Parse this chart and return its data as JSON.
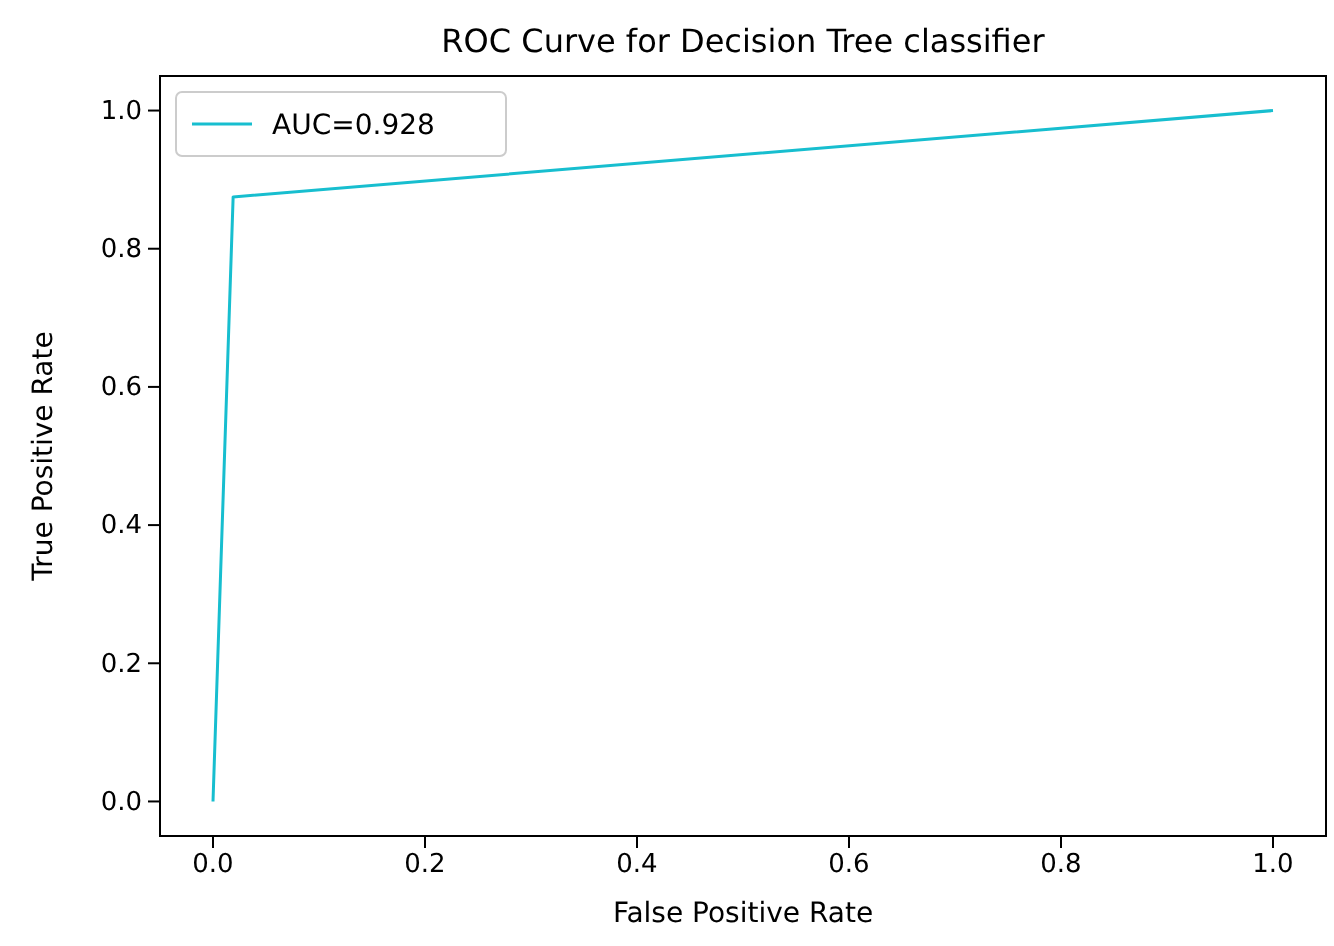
{
  "chart_data": {
    "type": "line",
    "title": "ROC Curve for Decision Tree classifier",
    "xlabel": "False Positive Rate",
    "ylabel": "True Positive Rate",
    "x": [
      0,
      0.019,
      1
    ],
    "series": [
      {
        "name": "AUC=0.928",
        "color": "#17becf",
        "values": [
          0,
          0.875,
          1
        ]
      }
    ],
    "xlim": [
      -0.05,
      1.05
    ],
    "xticks": [
      {
        "value": 0,
        "label": "0.0"
      },
      {
        "value": 0.2,
        "label": "0.2"
      },
      {
        "value": 0.4,
        "label": "0.4"
      },
      {
        "value": 0.6,
        "label": "0.6"
      },
      {
        "value": 0.8,
        "label": "0.8"
      },
      {
        "value": 1,
        "label": "1.0"
      }
    ],
    "ylim": [
      -0.05,
      1.05
    ],
    "yticks": [
      {
        "value": 0,
        "label": "0.0"
      },
      {
        "value": 0.2,
        "label": "0.2"
      },
      {
        "value": 0.4,
        "label": "0.4"
      },
      {
        "value": 0.6,
        "label": "0.6"
      },
      {
        "value": 0.8,
        "label": "0.8"
      },
      {
        "value": 1,
        "label": "1.0"
      }
    ],
    "legend": "top left",
    "grid": false
  }
}
